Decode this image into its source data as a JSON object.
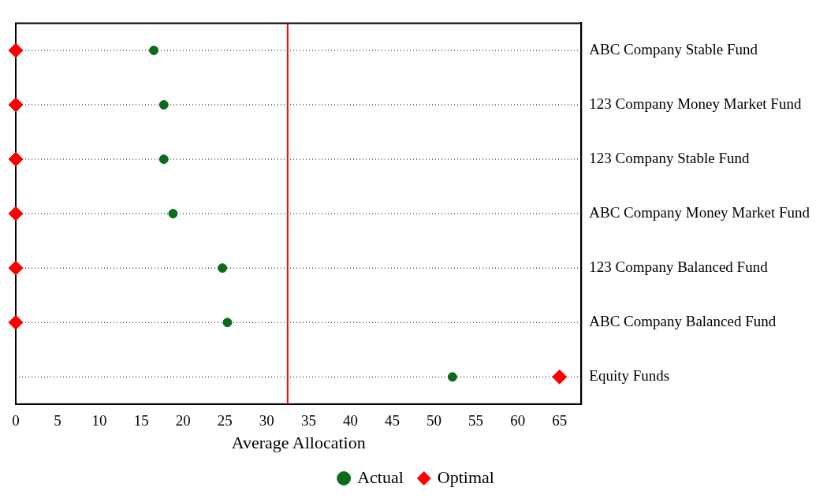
{
  "chart_data": {
    "type": "scatter",
    "orientation": "horizontal",
    "xlabel": "Average Allocation",
    "categories": [
      "ABC Company Stable Fund",
      "123 Company Money Market Fund",
      "123 Company Stable Fund",
      "ABC Company Money Market Fund",
      "123 Company Balanced Fund",
      "ABC Company Balanced Fund",
      "Equity Funds"
    ],
    "series": [
      {
        "name": "Actual",
        "color": "#0b6b1c",
        "marker": "circle",
        "values": [
          16.5,
          17.7,
          17.7,
          18.8,
          24.7,
          25.3,
          52.2
        ]
      },
      {
        "name": "Optimal",
        "color": "#ff0000",
        "marker": "diamond",
        "values": [
          0,
          0,
          0,
          0,
          0,
          0,
          65
        ]
      }
    ],
    "xlim": [
      0,
      67.6
    ],
    "xticks": [
      0,
      5,
      10,
      15,
      20,
      25,
      30,
      35,
      40,
      45,
      50,
      55,
      60,
      65
    ],
    "ref_lines": [
      {
        "axis": "x",
        "value": 32.5,
        "color": "#ff0000"
      }
    ],
    "grid": "y",
    "line_style": "dotted",
    "legend": "bottom"
  }
}
